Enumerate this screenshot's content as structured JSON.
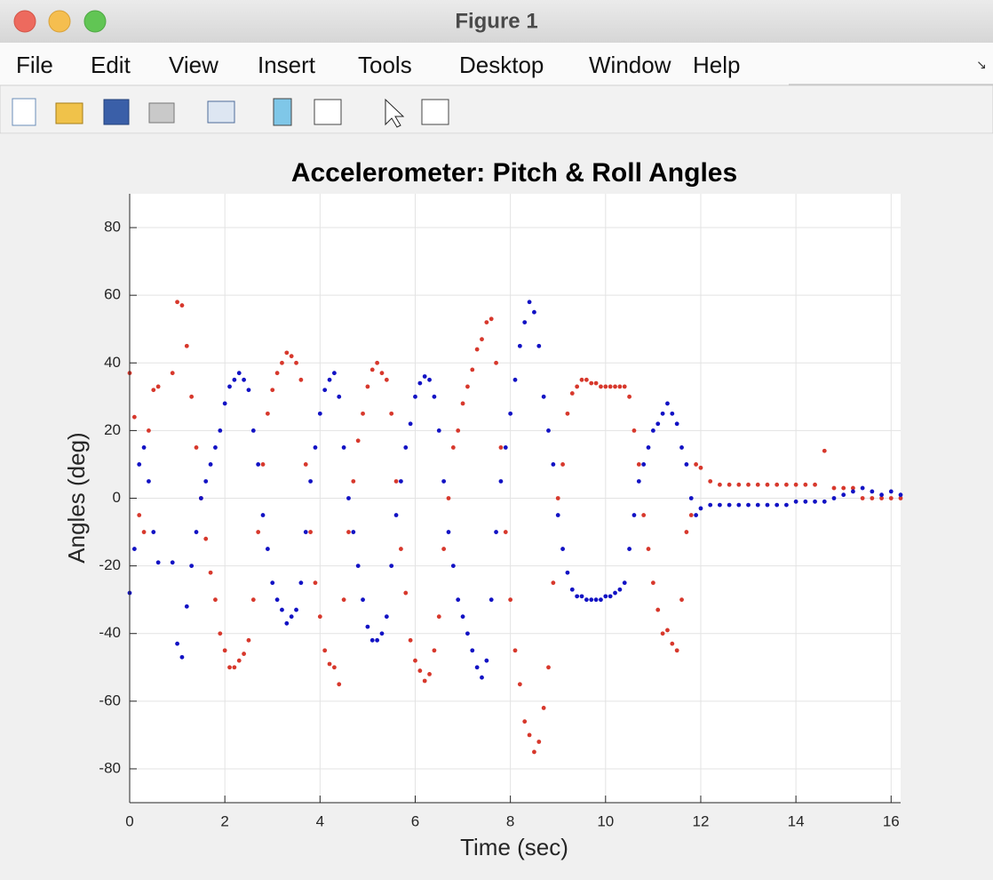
{
  "window": {
    "title": "Figure 1"
  },
  "menu": [
    "File",
    "Edit",
    "View",
    "Insert",
    "Tools",
    "Desktop",
    "Window",
    "Help"
  ],
  "chart_data": {
    "type": "scatter",
    "title": "Accelerometer: Pitch & Roll Angles",
    "xlabel": "Time (sec)",
    "ylabel": "Angles (deg)",
    "xlim": [
      0,
      16.2
    ],
    "ylim": [
      -90,
      90
    ],
    "xticks": [
      0,
      2,
      4,
      6,
      8,
      10,
      12,
      14,
      16
    ],
    "yticks": [
      -80,
      -60,
      -40,
      -20,
      0,
      20,
      40,
      60,
      80
    ],
    "grid": true,
    "x": [
      0,
      0.1,
      0.2,
      0.3,
      0.4,
      0.5,
      0.6,
      0.7,
      0.8,
      0.9,
      1,
      1.1,
      1.2,
      1.3,
      1.4,
      1.5,
      1.6,
      1.7,
      1.8,
      1.9,
      2,
      2.1,
      2.2,
      2.3,
      2.4,
      2.5,
      2.6,
      2.7,
      2.8,
      2.9,
      3,
      3.1,
      3.2,
      3.3,
      3.4,
      3.5,
      3.6,
      3.7,
      3.8,
      3.9,
      4,
      4.1,
      4.2,
      4.3,
      4.4,
      4.5,
      4.6,
      4.7,
      4.8,
      4.9,
      5,
      5.1,
      5.2,
      5.3,
      5.4,
      5.5,
      5.6,
      5.7,
      5.8,
      5.9,
      6,
      6.1,
      6.2,
      6.3,
      6.4,
      6.5,
      6.6,
      6.7,
      6.8,
      6.9,
      7,
      7.1,
      7.2,
      7.3,
      7.4,
      7.5,
      7.6,
      7.7,
      7.8,
      7.9,
      8,
      8.1,
      8.2,
      8.3,
      8.4,
      8.5,
      8.6,
      8.7,
      8.8,
      8.9,
      9,
      9.1,
      9.2,
      9.3,
      9.4,
      9.5,
      9.6,
      9.7,
      9.8,
      9.9,
      10,
      10.1,
      10.2,
      10.3,
      10.4,
      10.5,
      10.6,
      10.7,
      10.8,
      10.9,
      11,
      11.1,
      11.2,
      11.3,
      11.4,
      11.5,
      11.6,
      11.7,
      11.8,
      11.9,
      12,
      12.2,
      12.4,
      12.6,
      12.8,
      13,
      13.2,
      13.4,
      13.6,
      13.8,
      14,
      14.2,
      14.4,
      14.6,
      14.8,
      15,
      15.2,
      15.4,
      15.6,
      15.8,
      16,
      16.2
    ],
    "series": [
      {
        "color": "#d7382c",
        "values": [
          37,
          24,
          -5,
          -10,
          20,
          32,
          33,
          null,
          null,
          37,
          58,
          57,
          45,
          30,
          15,
          0,
          -12,
          -22,
          -30,
          -40,
          -45,
          -50,
          -50,
          -48,
          -46,
          -42,
          -30,
          -10,
          10,
          25,
          32,
          37,
          40,
          43,
          42,
          40,
          35,
          10,
          -10,
          -25,
          -35,
          -45,
          -49,
          -50,
          -55,
          -30,
          -10,
          5,
          17,
          25,
          33,
          38,
          40,
          37,
          35,
          25,
          5,
          -15,
          -28,
          -42,
          -48,
          -51,
          -54,
          -52,
          -45,
          -35,
          -15,
          0,
          15,
          20,
          28,
          33,
          38,
          44,
          47,
          52,
          53,
          40,
          15,
          -10,
          -30,
          -45,
          -55,
          -66,
          -70,
          -75,
          -72,
          -62,
          -50,
          -25,
          0,
          10,
          25,
          31,
          33,
          35,
          35,
          34,
          34,
          33,
          33,
          33,
          33,
          33,
          33,
          30,
          20,
          10,
          -5,
          -15,
          -25,
          -33,
          -40,
          -39,
          -43,
          -45,
          -30,
          -10,
          -5,
          10,
          9,
          5,
          4,
          4,
          4,
          4,
          4,
          4,
          4,
          4,
          4,
          4,
          4,
          14,
          3,
          3,
          3,
          0,
          0,
          0,
          0,
          0
        ]
      },
      {
        "color": "#1212c4",
        "values": [
          -28,
          -15,
          10,
          15,
          5,
          -10,
          -19,
          null,
          null,
          -19,
          -43,
          -47,
          -32,
          -20,
          -10,
          0,
          5,
          10,
          15,
          20,
          28,
          33,
          35,
          37,
          35,
          32,
          20,
          10,
          -5,
          -15,
          -25,
          -30,
          -33,
          -37,
          -35,
          -33,
          -25,
          -10,
          5,
          15,
          25,
          32,
          35,
          37,
          30,
          15,
          0,
          -10,
          -20,
          -30,
          -38,
          -42,
          -42,
          -40,
          -35,
          -20,
          -5,
          5,
          15,
          22,
          30,
          34,
          36,
          35,
          30,
          20,
          5,
          -10,
          -20,
          -30,
          -35,
          -40,
          -45,
          -50,
          -53,
          -48,
          -30,
          -10,
          5,
          15,
          25,
          35,
          45,
          52,
          58,
          55,
          45,
          30,
          20,
          10,
          -5,
          -15,
          -22,
          -27,
          -29,
          -29,
          -30,
          -30,
          -30,
          -30,
          -29,
          -29,
          -28,
          -27,
          -25,
          -15,
          -5,
          5,
          10,
          15,
          20,
          22,
          25,
          28,
          25,
          22,
          15,
          10,
          0,
          -5,
          -3,
          -2,
          -2,
          -2,
          -2,
          -2,
          -2,
          -2,
          -2,
          -2,
          -1,
          -1,
          -1,
          -1,
          0,
          1,
          2,
          3,
          2,
          1,
          2,
          1
        ]
      }
    ]
  }
}
